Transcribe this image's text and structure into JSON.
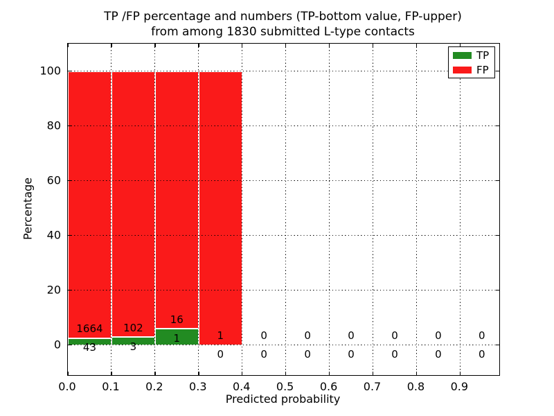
{
  "chart_data": {
    "type": "bar",
    "stacked": true,
    "title_line1": "TP /FP percentage and numbers (TP-bottom value, FP-upper)",
    "title_line2": "from among 1830 submitted L-type contacts",
    "xlabel": "Predicted probability",
    "ylabel": "Percentage",
    "xlim": [
      0.0,
      0.99
    ],
    "ylim": [
      -11,
      110
    ],
    "x_tick_labels": [
      "0.0",
      "0.1",
      "0.2",
      "0.3",
      "0.4",
      "0.5",
      "0.6",
      "0.7",
      "0.8",
      "0.9"
    ],
    "x_tick_values": [
      0.0,
      0.1,
      0.2,
      0.3,
      0.4,
      0.5,
      0.6,
      0.7,
      0.8,
      0.9
    ],
    "y_tick_labels": [
      "0",
      "20",
      "40",
      "60",
      "80",
      "100"
    ],
    "y_tick_values": [
      0,
      20,
      40,
      60,
      80,
      100
    ],
    "grid": "dotted, both axes, on top of bars",
    "bin_width": 0.1,
    "bin_starts": [
      0.0,
      0.1,
      0.2,
      0.3,
      0.4,
      0.5,
      0.6,
      0.7,
      0.8,
      0.9
    ],
    "series": [
      {
        "name": "TP",
        "color": "#228b22",
        "counts": [
          43,
          3,
          1,
          0,
          0,
          0,
          0,
          0,
          0,
          0
        ],
        "pct": [
          2.52,
          2.86,
          5.88,
          0,
          0,
          0,
          0,
          0,
          0,
          0
        ]
      },
      {
        "name": "FP",
        "color": "#fa1a1a",
        "counts": [
          1664,
          102,
          16,
          1,
          0,
          0,
          0,
          0,
          0,
          0
        ],
        "pct": [
          97.48,
          97.14,
          94.12,
          100,
          0,
          0,
          0,
          0,
          0,
          0
        ]
      }
    ],
    "bar_edge_color": "#ffffff",
    "legend": {
      "position": "upper right",
      "items": [
        {
          "label": "TP",
          "color": "#228b22"
        },
        {
          "label": "FP",
          "color": "#fa1a1a"
        }
      ]
    }
  }
}
